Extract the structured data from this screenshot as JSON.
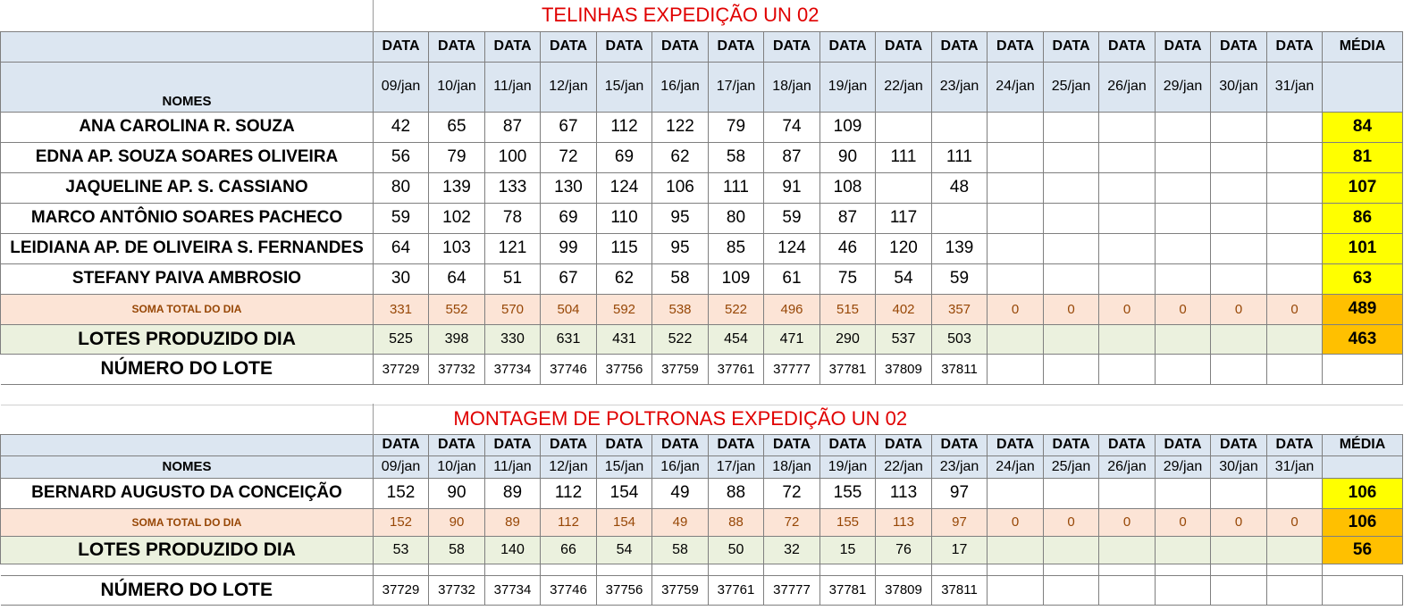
{
  "dates": [
    "09/jan",
    "10/jan",
    "11/jan",
    "12/jan",
    "15/jan",
    "16/jan",
    "17/jan",
    "18/jan",
    "19/jan",
    "22/jan",
    "23/jan",
    "24/jan",
    "25/jan",
    "26/jan",
    "29/jan",
    "30/jan",
    "31/jan"
  ],
  "labels": {
    "data": "DATA",
    "media": "MÉDIA",
    "nomes": "NOMES",
    "soma": "SOMA TOTAL DO DIA",
    "lotes": "LOTES PRODUZIDO DIA",
    "numero_lote": "NÚMERO DO LOTE"
  },
  "section1": {
    "title": "TELINHAS EXPEDIÇÃO UN 02",
    "rows": [
      {
        "name": "ANA CAROLINA R. SOUZA",
        "values": [
          "42",
          "65",
          "87",
          "67",
          "112",
          "122",
          "79",
          "74",
          "109",
          "",
          "",
          "",
          "",
          "",
          "",
          "",
          ""
        ],
        "avg": "84"
      },
      {
        "name": "EDNA AP. SOUZA SOARES OLIVEIRA",
        "values": [
          "56",
          "79",
          "100",
          "72",
          "69",
          "62",
          "58",
          "87",
          "90",
          "111",
          "111",
          "",
          "",
          "",
          "",
          "",
          ""
        ],
        "avg": "81"
      },
      {
        "name": "JAQUELINE AP.  S. CASSIANO",
        "values": [
          "80",
          "139",
          "133",
          "130",
          "124",
          "106",
          "111",
          "91",
          "108",
          "",
          "48",
          "",
          "",
          "",
          "",
          "",
          ""
        ],
        "avg": "107"
      },
      {
        "name": "MARCO ANTÔNIO SOARES PACHECO",
        "values": [
          "59",
          "102",
          "78",
          "69",
          "110",
          "95",
          "80",
          "59",
          "87",
          "117",
          "",
          "",
          "",
          "",
          "",
          "",
          ""
        ],
        "avg": "86"
      },
      {
        "name": "LEIDIANA AP. DE OLIVEIRA S. FERNANDES",
        "values": [
          "64",
          "103",
          "121",
          "99",
          "115",
          "95",
          "85",
          "124",
          "46",
          "120",
          "139",
          "",
          "",
          "",
          "",
          "",
          ""
        ],
        "avg": "101"
      },
      {
        "name": "STEFANY PAIVA AMBROSIO",
        "values": [
          "30",
          "64",
          "51",
          "67",
          "62",
          "58",
          "109",
          "61",
          "75",
          "54",
          "59",
          "",
          "",
          "",
          "",
          "",
          ""
        ],
        "avg": "63"
      }
    ],
    "soma": {
      "values": [
        "331",
        "552",
        "570",
        "504",
        "592",
        "538",
        "522",
        "496",
        "515",
        "402",
        "357",
        "0",
        "0",
        "0",
        "0",
        "0",
        "0"
      ],
      "avg": "489"
    },
    "lotes": {
      "values": [
        "525",
        "398",
        "330",
        "631",
        "431",
        "522",
        "454",
        "471",
        "290",
        "537",
        "503",
        "",
        "",
        "",
        "",
        "",
        ""
      ],
      "avg": "463"
    },
    "numero_lote": {
      "values": [
        "37729",
        "37732",
        "37734",
        "37746",
        "37756",
        "37759",
        "37761",
        "37777",
        "37781",
        "37809",
        "37811",
        "",
        "",
        "",
        "",
        "",
        ""
      ]
    }
  },
  "section2": {
    "title": "MONTAGEM DE POLTRONAS EXPEDIÇÃO UN 02",
    "rows": [
      {
        "name": "BERNARD AUGUSTO DA CONCEIÇÃO",
        "values": [
          "152",
          "90",
          "89",
          "112",
          "154",
          "49",
          "88",
          "72",
          "155",
          "113",
          "97",
          "",
          "",
          "",
          "",
          "",
          ""
        ],
        "avg": "106"
      }
    ],
    "soma": {
      "values": [
        "152",
        "90",
        "89",
        "112",
        "154",
        "49",
        "88",
        "72",
        "155",
        "113",
        "97",
        "0",
        "0",
        "0",
        "0",
        "0",
        "0"
      ],
      "avg": "106"
    },
    "lotes": {
      "values": [
        "53",
        "58",
        "140",
        "66",
        "54",
        "58",
        "50",
        "32",
        "15",
        "76",
        "17",
        "",
        "",
        "",
        "",
        "",
        ""
      ],
      "avg": "56"
    },
    "numero_lote": {
      "values": [
        "37729",
        "37732",
        "37734",
        "37746",
        "37756",
        "37759",
        "37761",
        "37777",
        "37781",
        "37809",
        "37811",
        "",
        "",
        "",
        "",
        "",
        ""
      ]
    }
  },
  "colors": {
    "header_bg": "#dce6f1",
    "average_bg": "#ffff00",
    "sum_avg_bg": "#ffc000",
    "sum_row_bg": "#fce4d6",
    "lotes_row_bg": "#ebf1de",
    "title_text": "#e00000"
  }
}
